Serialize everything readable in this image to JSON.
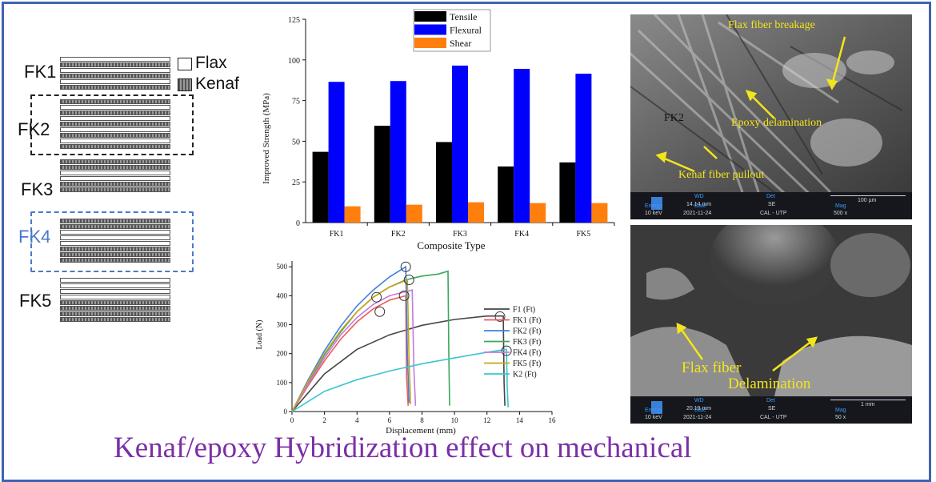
{
  "schematic": {
    "legend": {
      "flax": "Flax",
      "kenaf": "Kenaf"
    },
    "composites": [
      {
        "label": "FK1",
        "layers": [
          "flax",
          "kenaf",
          "flax",
          "kenaf",
          "flax",
          "kenaf"
        ]
      },
      {
        "label": "FK2",
        "layers": [
          "kenaf",
          "flax",
          "kenaf",
          "flax",
          "kenaf",
          "flax",
          "kenaf",
          "flax",
          "kenaf"
        ]
      },
      {
        "label": "FK3",
        "layers": [
          "kenaf",
          "kenaf",
          "flax",
          "flax",
          "kenaf",
          "kenaf"
        ]
      },
      {
        "label": "FK4",
        "layers": [
          "kenaf",
          "kenaf",
          "flax",
          "flax",
          "flax",
          "kenaf",
          "kenaf",
          "kenaf"
        ]
      },
      {
        "label": "FK5",
        "layers": [
          "flax",
          "flax",
          "flax",
          "flax",
          "kenaf",
          "kenaf",
          "kenaf",
          "kenaf"
        ]
      }
    ],
    "colors": {
      "highlight_fk2": "#222222",
      "highlight_fk4": "#4a78c8"
    }
  },
  "chart_data": [
    {
      "type": "bar",
      "categories": [
        "FK1",
        "FK2",
        "FK3",
        "FK4",
        "FK5"
      ],
      "series": [
        {
          "name": "Tensile",
          "color": "#000000",
          "values": [
            43.5,
            59.5,
            49.5,
            34.5,
            37
          ]
        },
        {
          "name": "Flexural",
          "color": "#0000ff",
          "values": [
            86.5,
            87,
            96.5,
            94.5,
            91.5
          ]
        },
        {
          "name": "Shear",
          "color": "#ff7f0e",
          "values": [
            10,
            11,
            12.5,
            12,
            12
          ]
        }
      ],
      "xlabel": "Composite Type",
      "ylabel": "Improved Strength (MPa)",
      "ylim": [
        0,
        125
      ],
      "yticks": [
        "0",
        "25",
        "50",
        "75",
        "100",
        "125"
      ],
      "legend_position": "top-center"
    },
    {
      "type": "line",
      "xlabel": "Displacement (mm)",
      "ylabel": "Load (N)",
      "xlim": [
        0,
        16
      ],
      "ylim": [
        0,
        520
      ],
      "xticks": [
        "0",
        "2",
        "4",
        "6",
        "8",
        "10",
        "12",
        "14",
        "16"
      ],
      "yticks": [
        "0",
        "100",
        "200",
        "300",
        "400",
        "500"
      ],
      "legend_position": "right",
      "series": [
        {
          "name": "F1 (Ft)",
          "color": "#454545",
          "x": [
            0,
            2,
            4,
            6,
            8,
            10,
            12,
            13,
            13.05,
            13.1
          ],
          "y": [
            0,
            130,
            215,
            265,
            298,
            318,
            330,
            330,
            100,
            20
          ]
        },
        {
          "name": "FK1 (Ft)",
          "color": "#f05a5a",
          "x": [
            0,
            1,
            2,
            3,
            4,
            5,
            6,
            7,
            7.05,
            7.15
          ],
          "y": [
            0,
            90,
            175,
            250,
            310,
            355,
            385,
            400,
            120,
            20
          ]
        },
        {
          "name": "FK2 (Ft)",
          "color": "#3f7fe0",
          "x": [
            0,
            1,
            2,
            3,
            4,
            5,
            6,
            7,
            7.1,
            7.2
          ],
          "y": [
            0,
            110,
            210,
            295,
            365,
            420,
            465,
            500,
            200,
            30
          ]
        },
        {
          "name": "FK3 (Ft)",
          "color": "#3aa85a",
          "x": [
            0,
            1,
            2,
            3,
            4,
            5,
            6,
            7,
            8,
            9,
            9.6,
            9.65,
            9.7
          ],
          "y": [
            0,
            100,
            195,
            275,
            345,
            395,
            430,
            455,
            468,
            475,
            485,
            200,
            20
          ]
        },
        {
          "name": "FK4 (Ft)",
          "color": "#c27ae0",
          "x": [
            0,
            1,
            2,
            3,
            4,
            5,
            6,
            7.4,
            7.5,
            7.6
          ],
          "y": [
            0,
            95,
            185,
            265,
            325,
            370,
            400,
            420,
            150,
            20
          ]
        },
        {
          "name": "FK5 (Ft)",
          "color": "#c8a516",
          "x": [
            0,
            1,
            2,
            3,
            4,
            5,
            6,
            7.1,
            7.2,
            7.3
          ],
          "y": [
            0,
            105,
            200,
            280,
            345,
            395,
            430,
            455,
            180,
            25
          ]
        },
        {
          "name": "K2 (Ft)",
          "color": "#38c6d0",
          "x": [
            0,
            2,
            4,
            6,
            8,
            10,
            12,
            13.2,
            13.25,
            13.3
          ],
          "y": [
            0,
            70,
            110,
            140,
            165,
            185,
            205,
            215,
            80,
            15
          ]
        }
      ],
      "failure_markers": [
        {
          "x": 7,
          "y": 500
        },
        {
          "x": 7.2,
          "y": 455
        },
        {
          "x": 5.2,
          "y": 395
        },
        {
          "x": 6.9,
          "y": 400
        },
        {
          "x": 5.4,
          "y": 345
        },
        {
          "x": 12.8,
          "y": 328
        },
        {
          "x": 13.2,
          "y": 210
        }
      ]
    }
  ],
  "sem_top": {
    "annotations": [
      "Flax fiber breakage",
      "FK2",
      "Epoxy delamination",
      "Kenaf fiber pullout"
    ],
    "info": {
      "wd_label": "WD",
      "wd": "14.14 mm",
      "det_label": "Det",
      "det": "SE",
      "energy_label": "Energy",
      "energy": "10 keV",
      "date_label": "Date",
      "date": "2021-11-24",
      "lab": "CAL - UTP",
      "mag_label": "Mag",
      "mag": "500 x",
      "scale": "100 µm"
    }
  },
  "sem_bottom": {
    "annotations": [
      "Flax fiber",
      "Delamination"
    ],
    "info": {
      "wd_label": "WD",
      "wd": "20.19 mm",
      "det_label": "Det",
      "det": "SE",
      "energy_label": "Energy",
      "energy": "10 keV",
      "date_label": "Date",
      "date": "2021-11-24",
      "lab": "CAL - UTP",
      "mag_label": "Mag",
      "mag": "50 x",
      "scale": "1 mm"
    }
  },
  "caption": "Kenaf/epoxy Hybridization effect on mechanical"
}
